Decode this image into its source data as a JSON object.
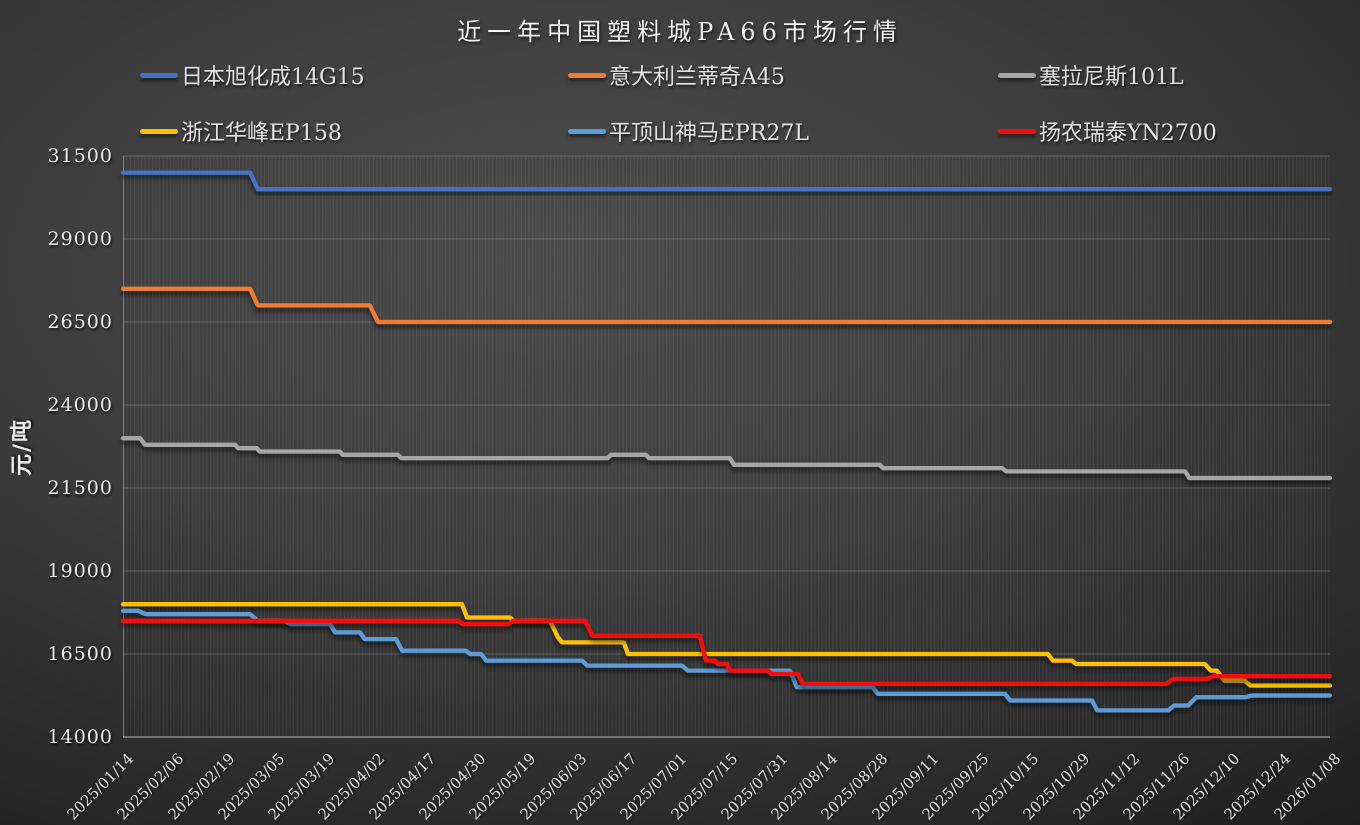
{
  "chart_data": {
    "type": "line",
    "title": "近一年中国塑料城PA66市场行情",
    "ylabel": "元/吨",
    "xlabel": "",
    "ylim": [
      14000,
      31500
    ],
    "y_tick_step": 2500,
    "y_ticks": [
      31500,
      29000,
      26500,
      24000,
      21500,
      19000,
      16500,
      14000
    ],
    "legend_position": "top",
    "grid": "horizontal-major-lines, dense-vertical-minor-stripes",
    "x_labels": [
      "2025/01/14",
      "2025/02/06",
      "2025/02/19",
      "2025/03/05",
      "2025/03/19",
      "2025/04/02",
      "2025/04/17",
      "2025/04/30",
      "2025/05/19",
      "2025/06/03",
      "2025/06/17",
      "2025/07/01",
      "2025/07/15",
      "2025/07/31",
      "2025/08/14",
      "2025/08/28",
      "2025/09/11",
      "2025/09/25",
      "2025/10/15",
      "2025/10/29",
      "2025/11/12",
      "2025/11/26",
      "2025/12/10",
      "2025/12/24",
      "2026/01/08"
    ],
    "x_axis_note_t_units": "breakpoints use t = x-label index units, 0 = 2025/01/14, 24 = 2026/01/08",
    "series": [
      {
        "name": "日本旭化成14G15",
        "color": "#4472C4",
        "values_at_labels": [
          31000,
          31000,
          31000,
          30500,
          30500,
          30500,
          30500,
          30500,
          30500,
          30500,
          30500,
          30500,
          30500,
          30500,
          30500,
          30500,
          30500,
          30500,
          30500,
          30500,
          30500,
          30500,
          30500,
          30500,
          30500
        ],
        "breakpoints": [
          [
            0,
            31000
          ],
          [
            2.53,
            31000
          ],
          [
            2.68,
            30500
          ],
          [
            24,
            30500
          ]
        ]
      },
      {
        "name": "意大利兰蒂奇A45",
        "color": "#ED7D31",
        "values_at_labels": [
          27500,
          27500,
          27500,
          27000,
          27000,
          26500,
          26500,
          26500,
          26500,
          26500,
          26500,
          26500,
          26500,
          26500,
          26500,
          26500,
          26500,
          26500,
          26500,
          26500,
          26500,
          26500,
          26500,
          26500,
          26500
        ],
        "breakpoints": [
          [
            0,
            27500
          ],
          [
            2.53,
            27500
          ],
          [
            2.68,
            27000
          ],
          [
            4.91,
            27000
          ],
          [
            5.07,
            26500
          ],
          [
            24,
            26500
          ]
        ]
      },
      {
        "name": "塞拉尼斯101L",
        "color": "#A6A6A6",
        "values_at_labels": [
          23000,
          22800,
          22800,
          22600,
          22600,
          22500,
          22400,
          22400,
          22400,
          22400,
          22500,
          22400,
          22400,
          22200,
          22200,
          22200,
          22100,
          22100,
          22000,
          22000,
          22000,
          22000,
          21800,
          21800,
          21800
        ],
        "breakpoints": [
          [
            0,
            23000
          ],
          [
            0.34,
            23000
          ],
          [
            0.44,
            22800
          ],
          [
            2.23,
            22800
          ],
          [
            2.29,
            22700
          ],
          [
            2.66,
            22700
          ],
          [
            2.72,
            22600
          ],
          [
            4.31,
            22600
          ],
          [
            4.37,
            22500
          ],
          [
            5.47,
            22500
          ],
          [
            5.53,
            22400
          ],
          [
            9.64,
            22400
          ],
          [
            9.7,
            22500
          ],
          [
            10.4,
            22500
          ],
          [
            10.46,
            22400
          ],
          [
            12.07,
            22400
          ],
          [
            12.15,
            22200
          ],
          [
            15.05,
            22200
          ],
          [
            15.11,
            22100
          ],
          [
            17.48,
            22100
          ],
          [
            17.56,
            22000
          ],
          [
            21.12,
            22000
          ],
          [
            21.2,
            21800
          ],
          [
            24,
            21800
          ]
        ]
      },
      {
        "name": "浙江华峰EP158",
        "color": "#FFC000",
        "values_at_labels": [
          18000,
          18000,
          18000,
          18000,
          18000,
          18000,
          18000,
          17600,
          17500,
          16850,
          16500,
          16500,
          16500,
          16500,
          16500,
          16500,
          16500,
          16500,
          16500,
          16200,
          16200,
          16200,
          15700,
          15550,
          15550
        ],
        "breakpoints": [
          [
            0,
            18000
          ],
          [
            6.74,
            18000
          ],
          [
            6.84,
            17600
          ],
          [
            7.7,
            17600
          ],
          [
            7.76,
            17500
          ],
          [
            8.49,
            17500
          ],
          [
            8.65,
            17000
          ],
          [
            8.73,
            16850
          ],
          [
            9.96,
            16850
          ],
          [
            10.04,
            16500
          ],
          [
            18.39,
            16500
          ],
          [
            18.49,
            16300
          ],
          [
            18.87,
            16300
          ],
          [
            18.95,
            16200
          ],
          [
            21.51,
            16200
          ],
          [
            21.63,
            16000
          ],
          [
            21.75,
            16000
          ],
          [
            21.9,
            15700
          ],
          [
            22.3,
            15700
          ],
          [
            22.42,
            15550
          ],
          [
            24,
            15550
          ]
        ]
      },
      {
        "name": "平顶山神马EPR27L",
        "color": "#5B9BD5",
        "values_at_labels": [
          17800,
          17700,
          17700,
          17500,
          17400,
          16950,
          16600,
          16500,
          16300,
          16300,
          16150,
          16150,
          16000,
          16000,
          15500,
          15300,
          15300,
          15300,
          15100,
          15100,
          14800,
          14950,
          15200,
          15250,
          15250
        ],
        "breakpoints": [
          [
            0,
            17800
          ],
          [
            0.3,
            17800
          ],
          [
            0.45,
            17700
          ],
          [
            2.53,
            17700
          ],
          [
            2.68,
            17500
          ],
          [
            3.22,
            17500
          ],
          [
            3.32,
            17400
          ],
          [
            4.12,
            17400
          ],
          [
            4.22,
            17150
          ],
          [
            4.71,
            17150
          ],
          [
            4.81,
            16950
          ],
          [
            5.43,
            16950
          ],
          [
            5.55,
            16600
          ],
          [
            6.82,
            16600
          ],
          [
            6.9,
            16500
          ],
          [
            7.12,
            16500
          ],
          [
            7.22,
            16300
          ],
          [
            9.13,
            16300
          ],
          [
            9.23,
            16150
          ],
          [
            11.11,
            16150
          ],
          [
            11.23,
            16000
          ],
          [
            13.26,
            16000
          ],
          [
            13.4,
            15500
          ],
          [
            14.91,
            15500
          ],
          [
            15.01,
            15300
          ],
          [
            17.54,
            15300
          ],
          [
            17.64,
            15100
          ],
          [
            19.27,
            15100
          ],
          [
            19.37,
            14800
          ],
          [
            20.78,
            14800
          ],
          [
            20.9,
            14950
          ],
          [
            21.18,
            14950
          ],
          [
            21.34,
            15200
          ],
          [
            22.33,
            15200
          ],
          [
            22.45,
            15250
          ],
          [
            24,
            15250
          ]
        ]
      },
      {
        "name": "扬农瑞泰YN2700",
        "color": "#F40B0B",
        "values_at_labels": [
          17500,
          17500,
          17500,
          17500,
          17500,
          17500,
          17500,
          17400,
          17500,
          17500,
          17050,
          17050,
          16200,
          15900,
          15600,
          15600,
          15600,
          15600,
          15600,
          15600,
          15600,
          15750,
          15830,
          15830,
          15830
        ],
        "breakpoints": [
          [
            0,
            17500
          ],
          [
            6.66,
            17500
          ],
          [
            6.76,
            17400
          ],
          [
            7.66,
            17400
          ],
          [
            7.76,
            17500
          ],
          [
            9.19,
            17500
          ],
          [
            9.33,
            17050
          ],
          [
            11.47,
            17050
          ],
          [
            11.59,
            16300
          ],
          [
            11.77,
            16300
          ],
          [
            11.83,
            16200
          ],
          [
            12.01,
            16200
          ],
          [
            12.07,
            16000
          ],
          [
            12.82,
            16000
          ],
          [
            12.9,
            15900
          ],
          [
            13.42,
            15900
          ],
          [
            13.52,
            15600
          ],
          [
            20.74,
            15600
          ],
          [
            20.88,
            15750
          ],
          [
            21.55,
            15750
          ],
          [
            21.68,
            15830
          ],
          [
            24,
            15830
          ]
        ]
      }
    ]
  }
}
